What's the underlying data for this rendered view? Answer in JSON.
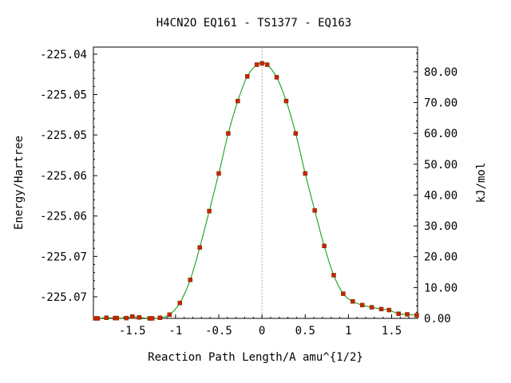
{
  "chart_data": {
    "type": "line",
    "title": "H4CN2O   EQ161 - TS1377 - EQ163",
    "xlabel": "Reaction Path Length/A amu^{1/2}",
    "ylabel_left": "Energy/Hartree",
    "ylabel_right": "kJ/mol",
    "xlim": [
      -1.95,
      1.8
    ],
    "ylim_kj": [
      0,
      88
    ],
    "x_ticks": [
      {
        "value": -1.5,
        "label": "-1.5"
      },
      {
        "value": -1.0,
        "label": "-1"
      },
      {
        "value": -0.5,
        "label": "-0.5"
      },
      {
        "value": 0.0,
        "label": "0"
      },
      {
        "value": 0.5,
        "label": "0.5"
      },
      {
        "value": 1.0,
        "label": "1"
      },
      {
        "value": 1.5,
        "label": "1.5"
      }
    ],
    "left_ticks": [
      {
        "kj": 85.7,
        "label": "-225.04"
      },
      {
        "kj": 72.6,
        "label": "-225.05"
      },
      {
        "kj": 59.5,
        "label": "-225.05"
      },
      {
        "kj": 46.3,
        "label": "-225.06"
      },
      {
        "kj": 33.2,
        "label": "-225.06"
      },
      {
        "kj": 20.1,
        "label": "-225.07"
      },
      {
        "kj": 7.0,
        "label": "-225.07"
      }
    ],
    "right_ticks": [
      {
        "kj": 0,
        "label": "0.00"
      },
      {
        "kj": 10,
        "label": "10.00"
      },
      {
        "kj": 20,
        "label": "20.00"
      },
      {
        "kj": 30,
        "label": "30.00"
      },
      {
        "kj": 40,
        "label": "40.00"
      },
      {
        "kj": 50,
        "label": "50.00"
      },
      {
        "kj": 60,
        "label": "60.00"
      },
      {
        "kj": 70,
        "label": "70.00"
      },
      {
        "kj": 80,
        "label": "80.00"
      }
    ],
    "ts_marker_x": 0.0,
    "series": [
      {
        "line_color": "#009900",
        "marker_color": "#cc2200",
        "points": [
          {
            "x": -1.93,
            "y": 0.0
          },
          {
            "x": -1.9,
            "y": 0.0
          },
          {
            "x": -1.8,
            "y": 0.2
          },
          {
            "x": -1.7,
            "y": 0.1
          },
          {
            "x": -1.68,
            "y": 0.1
          },
          {
            "x": -1.57,
            "y": 0.1
          },
          {
            "x": -1.5,
            "y": 0.6
          },
          {
            "x": -1.42,
            "y": 0.3
          },
          {
            "x": -1.3,
            "y": 0.0
          },
          {
            "x": -1.27,
            "y": 0.0
          },
          {
            "x": -1.18,
            "y": 0.2
          },
          {
            "x": -1.07,
            "y": 1.2
          },
          {
            "x": -0.95,
            "y": 5.0
          },
          {
            "x": -0.83,
            "y": 12.5
          },
          {
            "x": -0.72,
            "y": 23.0
          },
          {
            "x": -0.61,
            "y": 34.8
          },
          {
            "x": -0.5,
            "y": 47.0
          },
          {
            "x": -0.39,
            "y": 60.0
          },
          {
            "x": -0.28,
            "y": 70.5
          },
          {
            "x": -0.17,
            "y": 78.5
          },
          {
            "x": -0.06,
            "y": 82.3
          },
          {
            "x": 0.0,
            "y": 82.7
          },
          {
            "x": 0.06,
            "y": 82.3
          },
          {
            "x": 0.17,
            "y": 78.2
          },
          {
            "x": 0.28,
            "y": 70.5
          },
          {
            "x": 0.39,
            "y": 60.0
          },
          {
            "x": 0.5,
            "y": 47.0
          },
          {
            "x": 0.61,
            "y": 35.0
          },
          {
            "x": 0.72,
            "y": 23.5
          },
          {
            "x": 0.83,
            "y": 14.0
          },
          {
            "x": 0.94,
            "y": 8.0
          },
          {
            "x": 1.05,
            "y": 5.5
          },
          {
            "x": 1.16,
            "y": 4.3
          },
          {
            "x": 1.27,
            "y": 3.6
          },
          {
            "x": 1.38,
            "y": 3.0
          },
          {
            "x": 1.47,
            "y": 2.7
          },
          {
            "x": 1.58,
            "y": 1.5
          },
          {
            "x": 1.68,
            "y": 1.3
          },
          {
            "x": 1.79,
            "y": 1.0
          }
        ]
      }
    ]
  }
}
